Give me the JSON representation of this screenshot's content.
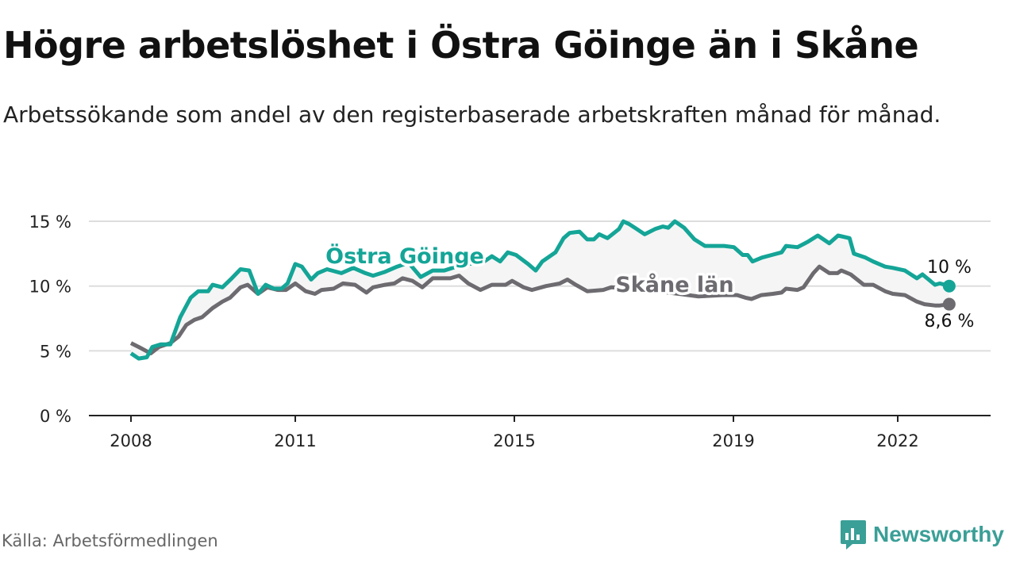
{
  "title": "Högre arbetslöshet i Östra Göinge än i Skåne",
  "subtitle": "Arbetssökande som andel av den registerbaserade arbetskraften månad för månad.",
  "source": "Källa: Arbetsförmedlingen",
  "brand": "Newsworthy",
  "colors": {
    "goinge": "#14a597",
    "skane": "#6d6b70",
    "band": "#f5f5f5",
    "grid": "#dddddd"
  },
  "chart_data": {
    "type": "line",
    "xlabel": "",
    "ylabel": "",
    "xlim": [
      2008,
      2023.7
    ],
    "ylim": [
      0,
      15
    ],
    "x_ticks": [
      {
        "v": 2008,
        "label": "2008"
      },
      {
        "v": 2011,
        "label": "2011"
      },
      {
        "v": 2015,
        "label": "2015"
      },
      {
        "v": 2019,
        "label": "2019"
      },
      {
        "v": 2022,
        "label": "2022"
      }
    ],
    "y_ticks": [
      {
        "v": 0,
        "label": "0 %"
      },
      {
        "v": 5,
        "label": "5 %"
      },
      {
        "v": 10,
        "label": "10 %"
      },
      {
        "v": 15,
        "label": "15 %"
      }
    ],
    "grid": true,
    "series": [
      {
        "name": "Östra Göinge",
        "end_label": "10 %",
        "points": [
          [
            2008.0,
            4.8
          ],
          [
            2008.14,
            4.4
          ],
          [
            2008.29,
            4.5
          ],
          [
            2008.39,
            5.3
          ],
          [
            2008.55,
            5.5
          ],
          [
            2008.72,
            5.5
          ],
          [
            2008.9,
            7.6
          ],
          [
            2009.09,
            9.1
          ],
          [
            2009.23,
            9.6
          ],
          [
            2009.41,
            9.6
          ],
          [
            2009.49,
            10.1
          ],
          [
            2009.67,
            9.9
          ],
          [
            2009.84,
            10.6
          ],
          [
            2010.0,
            11.3
          ],
          [
            2010.16,
            11.2
          ],
          [
            2010.32,
            9.4
          ],
          [
            2010.46,
            10.1
          ],
          [
            2010.61,
            9.8
          ],
          [
            2010.75,
            9.8
          ],
          [
            2010.86,
            10.2
          ],
          [
            2011.0,
            11.7
          ],
          [
            2011.12,
            11.5
          ],
          [
            2011.29,
            10.5
          ],
          [
            2011.41,
            11.0
          ],
          [
            2011.58,
            11.3
          ],
          [
            2011.84,
            11.0
          ],
          [
            2012.06,
            11.4
          ],
          [
            2012.28,
            11.0
          ],
          [
            2012.42,
            10.8
          ],
          [
            2012.64,
            11.1
          ],
          [
            2012.86,
            11.5
          ],
          [
            2013.07,
            11.8
          ],
          [
            2013.29,
            10.7
          ],
          [
            2013.51,
            11.2
          ],
          [
            2013.72,
            11.2
          ],
          [
            2013.94,
            11.5
          ],
          [
            2014.16,
            11.7
          ],
          [
            2014.45,
            11.9
          ],
          [
            2014.59,
            12.3
          ],
          [
            2014.74,
            11.9
          ],
          [
            2014.88,
            12.6
          ],
          [
            2015.03,
            12.4
          ],
          [
            2015.25,
            11.7
          ],
          [
            2015.39,
            11.2
          ],
          [
            2015.51,
            11.9
          ],
          [
            2015.75,
            12.6
          ],
          [
            2015.9,
            13.7
          ],
          [
            2016.01,
            14.1
          ],
          [
            2016.19,
            14.2
          ],
          [
            2016.33,
            13.6
          ],
          [
            2016.45,
            13.6
          ],
          [
            2016.55,
            14.0
          ],
          [
            2016.7,
            13.7
          ],
          [
            2016.91,
            14.4
          ],
          [
            2016.99,
            15.0
          ],
          [
            2017.09,
            14.8
          ],
          [
            2017.2,
            14.5
          ],
          [
            2017.38,
            14.0
          ],
          [
            2017.57,
            14.4
          ],
          [
            2017.71,
            14.6
          ],
          [
            2017.81,
            14.5
          ],
          [
            2017.93,
            15.0
          ],
          [
            2018.1,
            14.5
          ],
          [
            2018.29,
            13.6
          ],
          [
            2018.48,
            13.1
          ],
          [
            2018.65,
            13.1
          ],
          [
            2018.83,
            13.1
          ],
          [
            2019.01,
            13.0
          ],
          [
            2019.17,
            12.4
          ],
          [
            2019.26,
            12.4
          ],
          [
            2019.35,
            11.9
          ],
          [
            2019.52,
            12.2
          ],
          [
            2019.7,
            12.4
          ],
          [
            2019.88,
            12.6
          ],
          [
            2019.96,
            13.1
          ],
          [
            2020.17,
            13.0
          ],
          [
            2020.35,
            13.4
          ],
          [
            2020.54,
            13.9
          ],
          [
            2020.75,
            13.3
          ],
          [
            2020.91,
            13.9
          ],
          [
            2021.12,
            13.7
          ],
          [
            2021.2,
            12.5
          ],
          [
            2021.41,
            12.2
          ],
          [
            2021.55,
            11.9
          ],
          [
            2021.77,
            11.5
          ],
          [
            2021.91,
            11.4
          ],
          [
            2022.13,
            11.2
          ],
          [
            2022.35,
            10.6
          ],
          [
            2022.45,
            10.9
          ],
          [
            2022.68,
            10.1
          ],
          [
            2022.77,
            10.2
          ],
          [
            2022.94,
            10.0
          ]
        ]
      },
      {
        "name": "Skåne län",
        "end_label": "8,6 %",
        "points": [
          [
            2008.0,
            5.6
          ],
          [
            2008.14,
            5.3
          ],
          [
            2008.36,
            4.8
          ],
          [
            2008.51,
            5.3
          ],
          [
            2008.72,
            5.6
          ],
          [
            2008.87,
            6.1
          ],
          [
            2009.01,
            7.0
          ],
          [
            2009.16,
            7.4
          ],
          [
            2009.3,
            7.6
          ],
          [
            2009.49,
            8.3
          ],
          [
            2009.67,
            8.8
          ],
          [
            2009.81,
            9.1
          ],
          [
            2010.0,
            9.9
          ],
          [
            2010.13,
            10.1
          ],
          [
            2010.32,
            9.4
          ],
          [
            2010.49,
            9.9
          ],
          [
            2010.68,
            9.7
          ],
          [
            2010.83,
            9.7
          ],
          [
            2011.0,
            10.2
          ],
          [
            2011.19,
            9.6
          ],
          [
            2011.36,
            9.4
          ],
          [
            2011.48,
            9.7
          ],
          [
            2011.7,
            9.8
          ],
          [
            2011.87,
            10.2
          ],
          [
            2012.09,
            10.1
          ],
          [
            2012.3,
            9.5
          ],
          [
            2012.42,
            9.9
          ],
          [
            2012.64,
            10.1
          ],
          [
            2012.81,
            10.2
          ],
          [
            2012.96,
            10.6
          ],
          [
            2013.14,
            10.4
          ],
          [
            2013.32,
            9.9
          ],
          [
            2013.51,
            10.6
          ],
          [
            2013.83,
            10.6
          ],
          [
            2013.99,
            10.8
          ],
          [
            2014.16,
            10.2
          ],
          [
            2014.38,
            9.7
          ],
          [
            2014.59,
            10.1
          ],
          [
            2014.84,
            10.1
          ],
          [
            2014.96,
            10.4
          ],
          [
            2015.17,
            9.9
          ],
          [
            2015.32,
            9.7
          ],
          [
            2015.58,
            10.0
          ],
          [
            2015.83,
            10.2
          ],
          [
            2015.97,
            10.5
          ],
          [
            2016.12,
            10.1
          ],
          [
            2016.33,
            9.6
          ],
          [
            2016.62,
            9.7
          ],
          [
            2016.77,
            9.9
          ],
          [
            2017.2,
            9.8
          ],
          [
            2017.6,
            9.6
          ],
          [
            2018.0,
            9.4
          ],
          [
            2018.36,
            9.2
          ],
          [
            2018.8,
            9.3
          ],
          [
            2019.07,
            9.3
          ],
          [
            2019.22,
            9.1
          ],
          [
            2019.33,
            9.0
          ],
          [
            2019.51,
            9.3
          ],
          [
            2019.72,
            9.4
          ],
          [
            2019.88,
            9.5
          ],
          [
            2019.96,
            9.8
          ],
          [
            2020.17,
            9.7
          ],
          [
            2020.28,
            9.9
          ],
          [
            2020.46,
            11.0
          ],
          [
            2020.57,
            11.5
          ],
          [
            2020.75,
            11.0
          ],
          [
            2020.9,
            11.0
          ],
          [
            2020.97,
            11.2
          ],
          [
            2021.14,
            10.9
          ],
          [
            2021.38,
            10.1
          ],
          [
            2021.55,
            10.1
          ],
          [
            2021.77,
            9.6
          ],
          [
            2021.91,
            9.4
          ],
          [
            2022.13,
            9.3
          ],
          [
            2022.35,
            8.8
          ],
          [
            2022.49,
            8.6
          ],
          [
            2022.68,
            8.5
          ],
          [
            2022.77,
            8.5
          ],
          [
            2022.94,
            8.6
          ]
        ]
      }
    ]
  }
}
